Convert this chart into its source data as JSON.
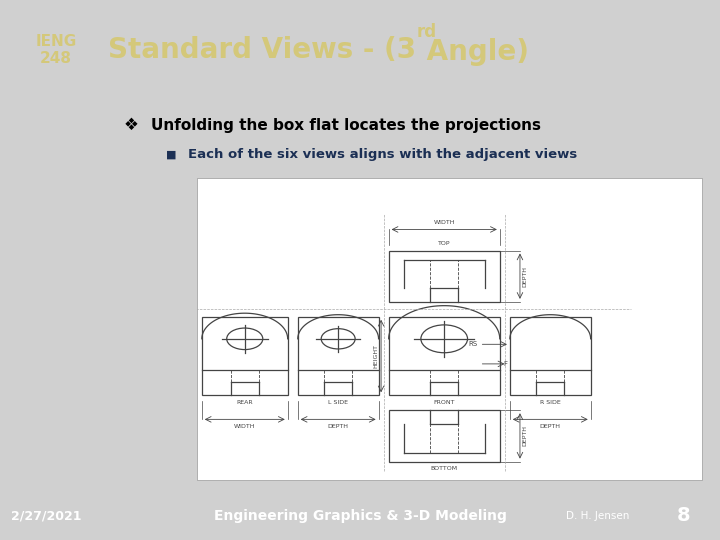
{
  "title_main": "Standard Views - (3",
  "title_super": "rd",
  "title_end": " Angle)",
  "course_line1": "IENG",
  "course_line2": "248",
  "bullet_text": "Unfolding the box flat locates the projections",
  "sub_bullet_text": "Each of the six views aligns with the adjacent views",
  "footer_left": "2/27/2021",
  "footer_center": "Engineering Graphics & 3-D Modeling",
  "footer_right_name": "D. H. Jensen",
  "footer_right_num": "8",
  "header_bg": "#1b2f54",
  "sidebar_bg": "#b5a36a",
  "content_bg": "#d0d0d0",
  "footer_bg": "#1b2f54",
  "footer_name_bg": "#7a6b4e",
  "footer_num_bg": "#1b2f54",
  "title_color": "#d4c87a",
  "course_color": "#1b2f54",
  "bullet_color": "#000000",
  "sub_bullet_color": "#1b2f54",
  "footer_text_color": "#ffffff",
  "diagram_bg": "#f0f0f0",
  "gray": "#444444"
}
